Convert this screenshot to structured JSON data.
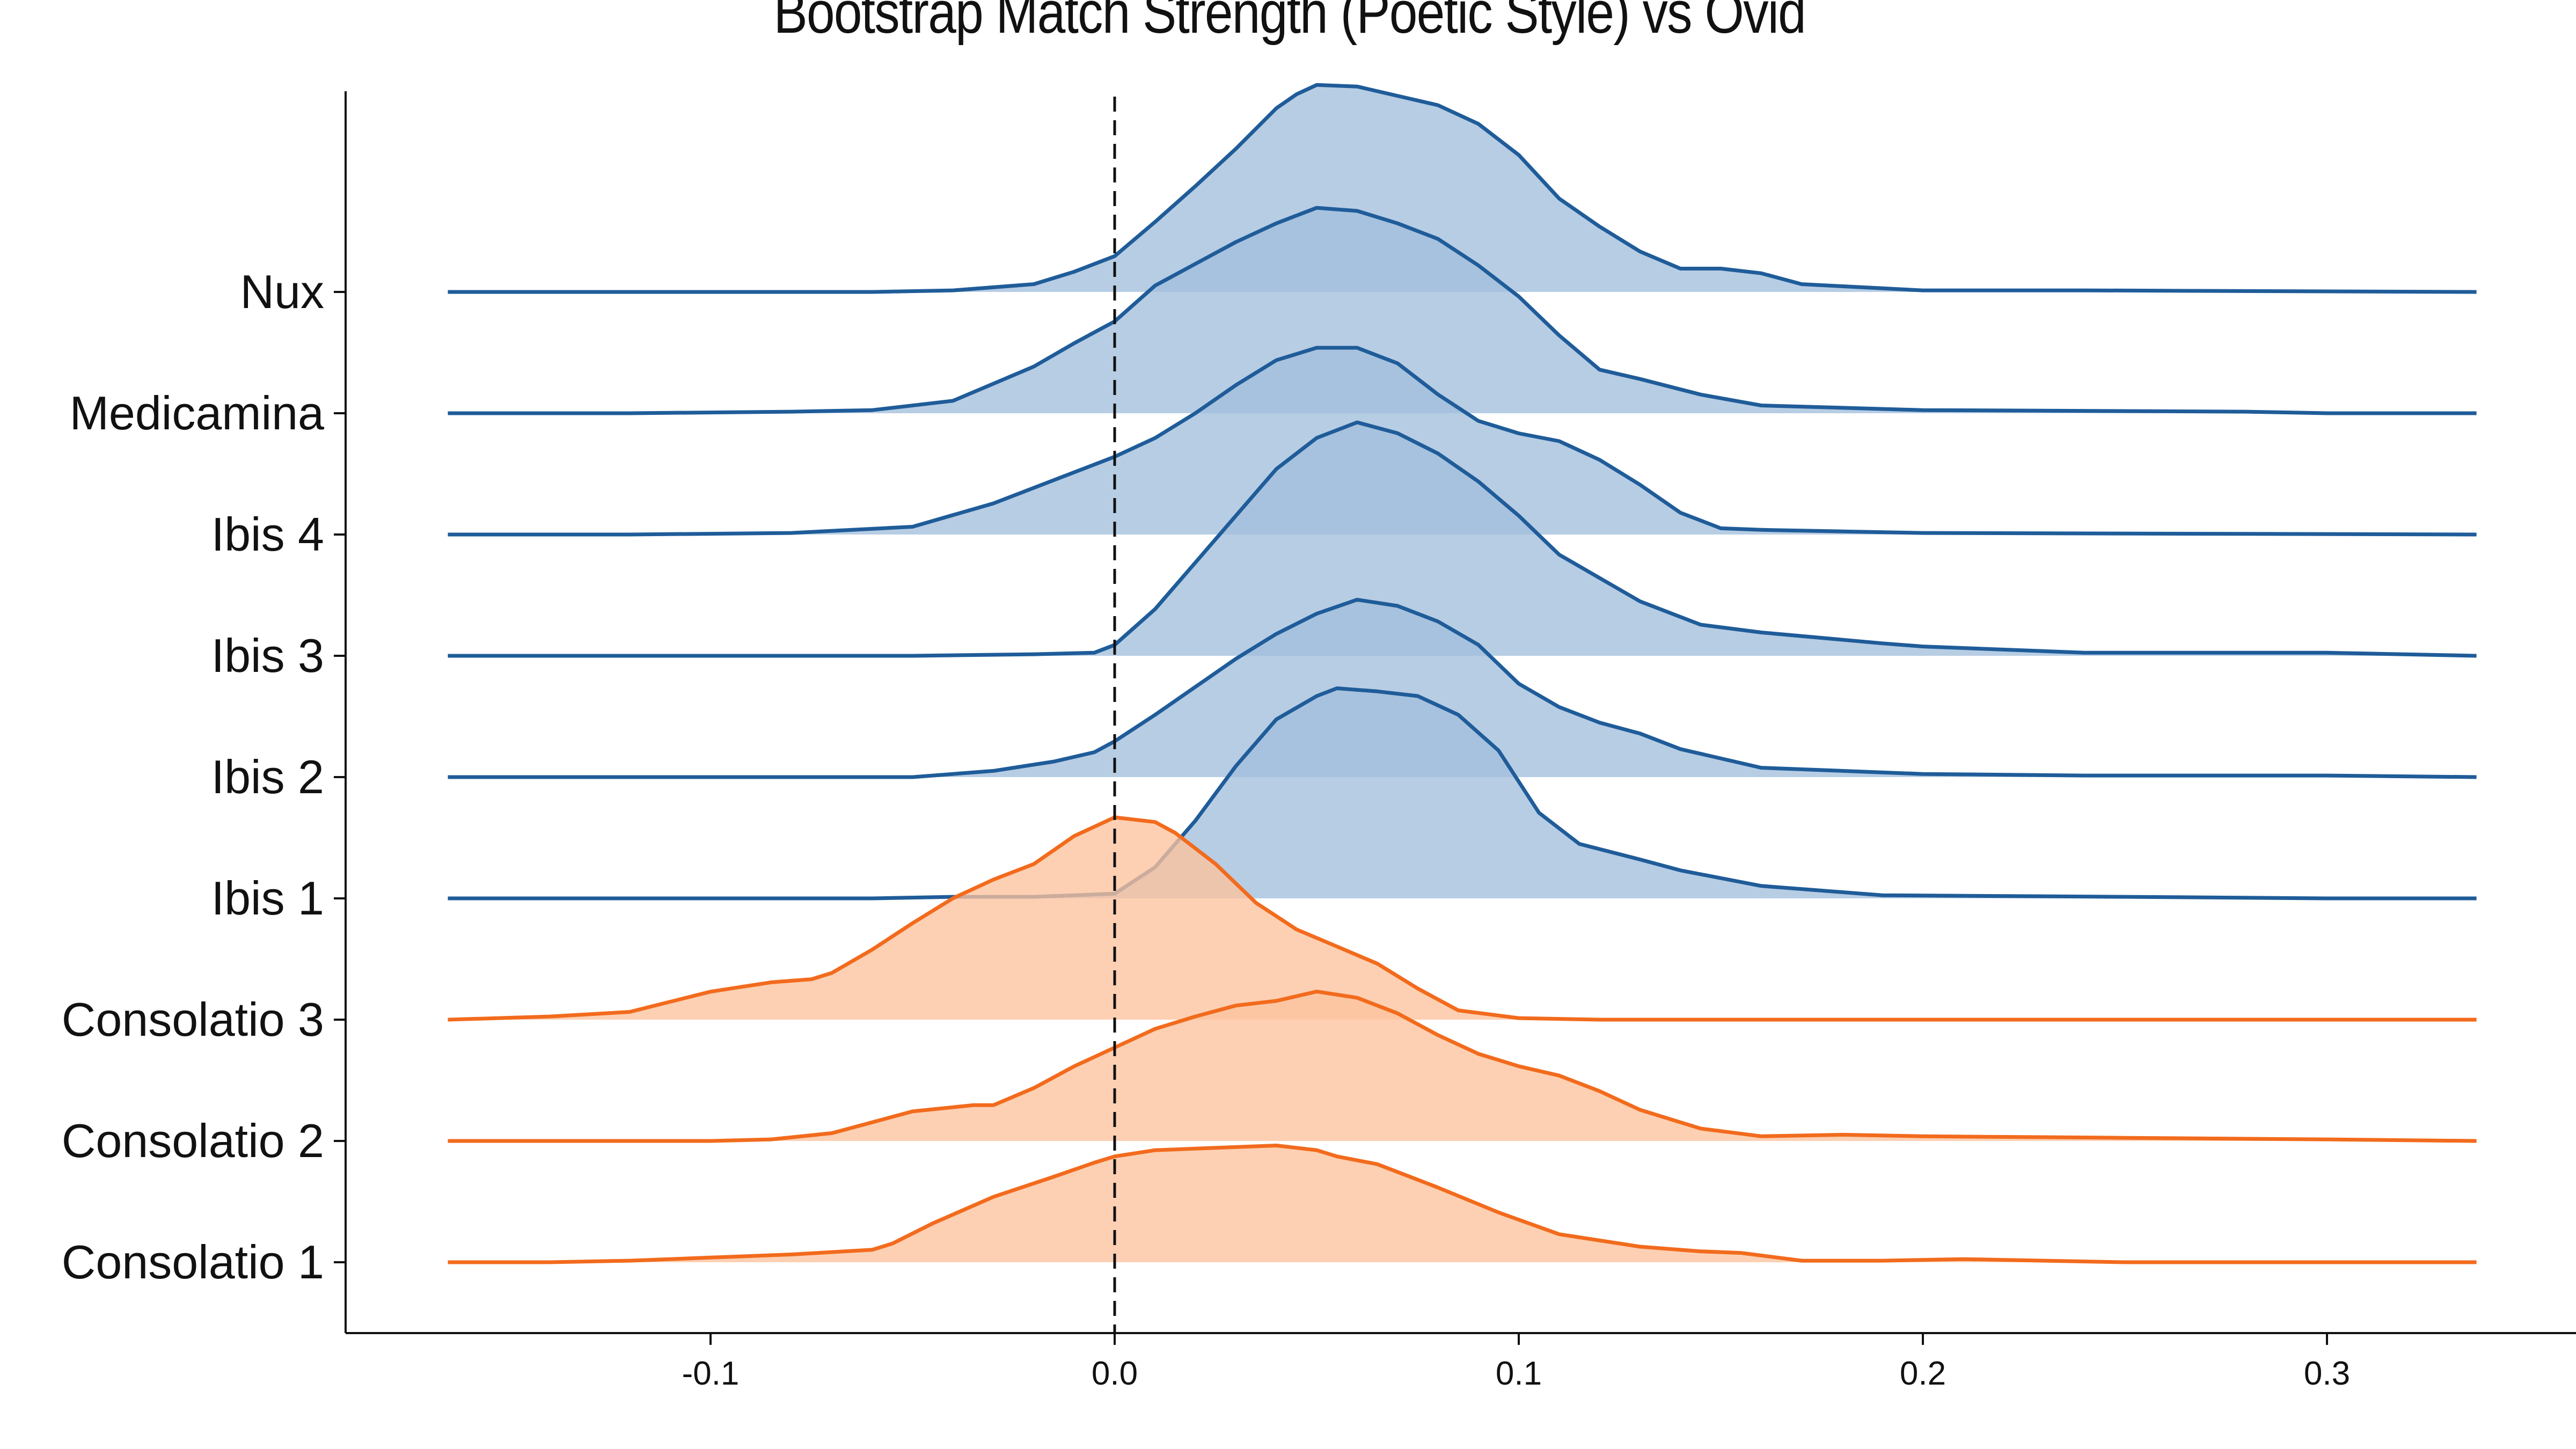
{
  "chart_data": {
    "type": "ridgeline",
    "title": "Bootstrap Match Strength (Poetic Style) vs Ovid",
    "xlabel": "",
    "ylabel": "",
    "xlim": [
      -0.1785,
      0.3525
    ],
    "x_ticks": [
      "-0.1",
      "0.0",
      "0.1",
      "0.2",
      "0.3"
    ],
    "x_tick_values": [
      -0.1,
      0.0,
      0.1,
      0.2,
      0.3
    ],
    "reference_line": {
      "x": 0.0,
      "style": "dashed"
    },
    "grid": false,
    "x_range_of_curves": [
      -0.165,
      0.337
    ],
    "colors": {
      "blue_line": "#1f5c99",
      "blue_fill": "#a3bfdc",
      "orange_line": "#f26b1d",
      "orange_fill": "#fdc39d"
    },
    "series": [
      {
        "name": "Consolatio 1",
        "group": "orange",
        "points": [
          [
            -0.165,
            0
          ],
          [
            -0.14,
            0
          ],
          [
            -0.12,
            0.01
          ],
          [
            -0.1,
            0.03
          ],
          [
            -0.08,
            0.05
          ],
          [
            -0.06,
            0.08
          ],
          [
            -0.055,
            0.12
          ],
          [
            -0.045,
            0.25
          ],
          [
            -0.03,
            0.42
          ],
          [
            -0.015,
            0.55
          ],
          [
            -0.005,
            0.64
          ],
          [
            0.0,
            0.68
          ],
          [
            0.01,
            0.72
          ],
          [
            0.02,
            0.73
          ],
          [
            0.03,
            0.74
          ],
          [
            0.04,
            0.75
          ],
          [
            0.05,
            0.72
          ],
          [
            0.055,
            0.68
          ],
          [
            0.065,
            0.63
          ],
          [
            0.08,
            0.48
          ],
          [
            0.095,
            0.32
          ],
          [
            0.11,
            0.18
          ],
          [
            0.13,
            0.1
          ],
          [
            0.145,
            0.07
          ],
          [
            0.155,
            0.06
          ],
          [
            0.17,
            0.01
          ],
          [
            0.19,
            0.01
          ],
          [
            0.21,
            0.02
          ],
          [
            0.23,
            0.01
          ],
          [
            0.25,
            0.0
          ],
          [
            0.337,
            0
          ]
        ]
      },
      {
        "name": "Consolatio 2",
        "group": "orange",
        "points": [
          [
            -0.165,
            0
          ],
          [
            -0.12,
            0
          ],
          [
            -0.1,
            0
          ],
          [
            -0.085,
            0.01
          ],
          [
            -0.07,
            0.05
          ],
          [
            -0.06,
            0.12
          ],
          [
            -0.05,
            0.19
          ],
          [
            -0.035,
            0.23
          ],
          [
            -0.03,
            0.23
          ],
          [
            -0.02,
            0.34
          ],
          [
            -0.01,
            0.48
          ],
          [
            0.0,
            0.6
          ],
          [
            0.01,
            0.72
          ],
          [
            0.02,
            0.8
          ],
          [
            0.03,
            0.87
          ],
          [
            0.04,
            0.9
          ],
          [
            0.05,
            0.96
          ],
          [
            0.06,
            0.92
          ],
          [
            0.07,
            0.82
          ],
          [
            0.08,
            0.68
          ],
          [
            0.09,
            0.56
          ],
          [
            0.1,
            0.48
          ],
          [
            0.11,
            0.42
          ],
          [
            0.12,
            0.32
          ],
          [
            0.13,
            0.2
          ],
          [
            0.145,
            0.08
          ],
          [
            0.16,
            0.03
          ],
          [
            0.18,
            0.04
          ],
          [
            0.2,
            0.03
          ],
          [
            0.25,
            0.02
          ],
          [
            0.3,
            0.01
          ],
          [
            0.337,
            0
          ]
        ]
      },
      {
        "name": "Consolatio 3",
        "group": "orange",
        "points": [
          [
            -0.165,
            0
          ],
          [
            -0.14,
            0.02
          ],
          [
            -0.12,
            0.05
          ],
          [
            -0.1,
            0.18
          ],
          [
            -0.085,
            0.24
          ],
          [
            -0.075,
            0.26
          ],
          [
            -0.07,
            0.3
          ],
          [
            -0.06,
            0.45
          ],
          [
            -0.05,
            0.62
          ],
          [
            -0.04,
            0.78
          ],
          [
            -0.03,
            0.9
          ],
          [
            -0.02,
            1.0
          ],
          [
            -0.01,
            1.18
          ],
          [
            0.0,
            1.3
          ],
          [
            0.01,
            1.27
          ],
          [
            0.015,
            1.2
          ],
          [
            0.025,
            1.0
          ],
          [
            0.035,
            0.75
          ],
          [
            0.045,
            0.58
          ],
          [
            0.055,
            0.47
          ],
          [
            0.065,
            0.36
          ],
          [
            0.075,
            0.2
          ],
          [
            0.085,
            0.06
          ],
          [
            0.1,
            0.01
          ],
          [
            0.12,
            0
          ],
          [
            0.337,
            0
          ]
        ]
      },
      {
        "name": "Ibis 1",
        "group": "blue",
        "points": [
          [
            -0.165,
            0
          ],
          [
            -0.1,
            0
          ],
          [
            -0.06,
            0
          ],
          [
            -0.04,
            0.01
          ],
          [
            -0.02,
            0.01
          ],
          [
            0.0,
            0.03
          ],
          [
            0.01,
            0.2
          ],
          [
            0.02,
            0.5
          ],
          [
            0.03,
            0.85
          ],
          [
            0.04,
            1.15
          ],
          [
            0.05,
            1.3
          ],
          [
            0.055,
            1.35
          ],
          [
            0.065,
            1.33
          ],
          [
            0.075,
            1.3
          ],
          [
            0.085,
            1.18
          ],
          [
            0.095,
            0.95
          ],
          [
            0.105,
            0.55
          ],
          [
            0.115,
            0.35
          ],
          [
            0.13,
            0.25
          ],
          [
            0.14,
            0.18
          ],
          [
            0.16,
            0.08
          ],
          [
            0.19,
            0.02
          ],
          [
            0.25,
            0.01
          ],
          [
            0.3,
            0
          ],
          [
            0.337,
            0
          ]
        ]
      },
      {
        "name": "Ibis 2",
        "group": "blue",
        "points": [
          [
            -0.165,
            0
          ],
          [
            -0.1,
            0
          ],
          [
            -0.05,
            0
          ],
          [
            -0.03,
            0.04
          ],
          [
            -0.015,
            0.1
          ],
          [
            -0.005,
            0.16
          ],
          [
            0.0,
            0.23
          ],
          [
            0.01,
            0.4
          ],
          [
            0.02,
            0.58
          ],
          [
            0.03,
            0.76
          ],
          [
            0.04,
            0.92
          ],
          [
            0.05,
            1.05
          ],
          [
            0.06,
            1.14
          ],
          [
            0.07,
            1.1
          ],
          [
            0.08,
            1.0
          ],
          [
            0.09,
            0.85
          ],
          [
            0.1,
            0.6
          ],
          [
            0.11,
            0.45
          ],
          [
            0.12,
            0.35
          ],
          [
            0.13,
            0.28
          ],
          [
            0.14,
            0.18
          ],
          [
            0.16,
            0.06
          ],
          [
            0.2,
            0.02
          ],
          [
            0.24,
            0.01
          ],
          [
            0.3,
            0.01
          ],
          [
            0.337,
            0
          ]
        ]
      },
      {
        "name": "Ibis 3",
        "group": "blue",
        "points": [
          [
            -0.165,
            0
          ],
          [
            -0.1,
            0
          ],
          [
            -0.05,
            0
          ],
          [
            -0.02,
            0.01
          ],
          [
            -0.005,
            0.02
          ],
          [
            0.0,
            0.07
          ],
          [
            0.01,
            0.3
          ],
          [
            0.02,
            0.6
          ],
          [
            0.03,
            0.9
          ],
          [
            0.04,
            1.2
          ],
          [
            0.05,
            1.4
          ],
          [
            0.06,
            1.5
          ],
          [
            0.07,
            1.43
          ],
          [
            0.08,
            1.3
          ],
          [
            0.09,
            1.12
          ],
          [
            0.1,
            0.9
          ],
          [
            0.11,
            0.65
          ],
          [
            0.12,
            0.5
          ],
          [
            0.13,
            0.35
          ],
          [
            0.145,
            0.2
          ],
          [
            0.16,
            0.15
          ],
          [
            0.19,
            0.08
          ],
          [
            0.2,
            0.06
          ],
          [
            0.24,
            0.02
          ],
          [
            0.3,
            0.02
          ],
          [
            0.337,
            0
          ]
        ]
      },
      {
        "name": "Ibis 4",
        "group": "blue",
        "points": [
          [
            -0.165,
            0
          ],
          [
            -0.12,
            0
          ],
          [
            -0.08,
            0.01
          ],
          [
            -0.05,
            0.05
          ],
          [
            -0.03,
            0.2
          ],
          [
            -0.015,
            0.35
          ],
          [
            0.0,
            0.5
          ],
          [
            0.01,
            0.62
          ],
          [
            0.02,
            0.78
          ],
          [
            0.03,
            0.96
          ],
          [
            0.04,
            1.12
          ],
          [
            0.05,
            1.2
          ],
          [
            0.06,
            1.2
          ],
          [
            0.07,
            1.1
          ],
          [
            0.08,
            0.9
          ],
          [
            0.09,
            0.73
          ],
          [
            0.1,
            0.65
          ],
          [
            0.11,
            0.6
          ],
          [
            0.12,
            0.48
          ],
          [
            0.13,
            0.32
          ],
          [
            0.14,
            0.14
          ],
          [
            0.15,
            0.04
          ],
          [
            0.16,
            0.03
          ],
          [
            0.18,
            0.02
          ],
          [
            0.2,
            0.01
          ],
          [
            0.337,
            0
          ]
        ]
      },
      {
        "name": "Medicamina",
        "group": "blue",
        "points": [
          [
            -0.165,
            0
          ],
          [
            -0.12,
            0
          ],
          [
            -0.08,
            0.01
          ],
          [
            -0.06,
            0.02
          ],
          [
            -0.04,
            0.08
          ],
          [
            -0.02,
            0.3
          ],
          [
            -0.01,
            0.45
          ],
          [
            0.0,
            0.59
          ],
          [
            0.01,
            0.82
          ],
          [
            0.02,
            0.96
          ],
          [
            0.03,
            1.1
          ],
          [
            0.04,
            1.22
          ],
          [
            0.05,
            1.32
          ],
          [
            0.06,
            1.3
          ],
          [
            0.07,
            1.22
          ],
          [
            0.08,
            1.12
          ],
          [
            0.09,
            0.95
          ],
          [
            0.1,
            0.75
          ],
          [
            0.11,
            0.5
          ],
          [
            0.12,
            0.28
          ],
          [
            0.13,
            0.22
          ],
          [
            0.145,
            0.12
          ],
          [
            0.16,
            0.05
          ],
          [
            0.2,
            0.02
          ],
          [
            0.28,
            0.01
          ],
          [
            0.3,
            0
          ],
          [
            0.337,
            0
          ]
        ]
      },
      {
        "name": "Nux",
        "group": "blue",
        "points": [
          [
            -0.165,
            0
          ],
          [
            -0.1,
            0
          ],
          [
            -0.06,
            0
          ],
          [
            -0.04,
            0.01
          ],
          [
            -0.02,
            0.05
          ],
          [
            -0.01,
            0.13
          ],
          [
            0.0,
            0.23
          ],
          [
            0.01,
            0.45
          ],
          [
            0.02,
            0.68
          ],
          [
            0.03,
            0.92
          ],
          [
            0.04,
            1.18
          ],
          [
            0.045,
            1.27
          ],
          [
            0.05,
            1.33
          ],
          [
            0.06,
            1.32
          ],
          [
            0.07,
            1.26
          ],
          [
            0.08,
            1.2
          ],
          [
            0.09,
            1.08
          ],
          [
            0.1,
            0.88
          ],
          [
            0.11,
            0.6
          ],
          [
            0.12,
            0.42
          ],
          [
            0.13,
            0.26
          ],
          [
            0.14,
            0.15
          ],
          [
            0.15,
            0.15
          ],
          [
            0.16,
            0.12
          ],
          [
            0.17,
            0.05
          ],
          [
            0.2,
            0.01
          ],
          [
            0.24,
            0.01
          ],
          [
            0.337,
            0
          ]
        ]
      }
    ]
  }
}
